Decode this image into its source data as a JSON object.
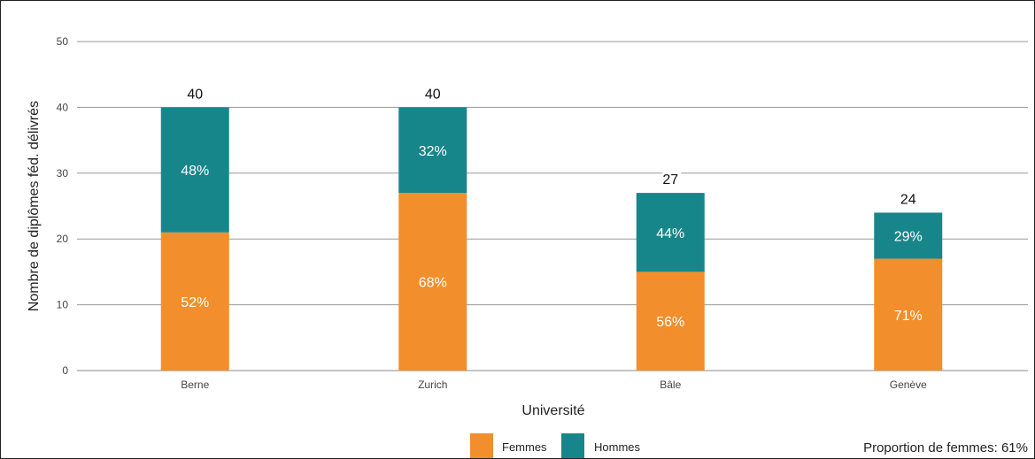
{
  "chart_data": {
    "type": "bar",
    "stacked": true,
    "categories": [
      "Berne",
      "Zurich",
      "Bâle",
      "Genève"
    ],
    "series": [
      {
        "name": "Femmes",
        "color": "#f28e2b",
        "values": [
          21,
          27,
          15,
          17
        ],
        "labels": [
          "52%",
          "68%",
          "56%",
          "71%"
        ]
      },
      {
        "name": "Hommes",
        "color": "#17868b",
        "values": [
          19,
          13,
          12,
          7
        ],
        "labels": [
          "48%",
          "32%",
          "44%",
          "29%"
        ]
      }
    ],
    "totals": [
      40,
      40,
      27,
      24
    ],
    "xlabel": "Université",
    "ylabel": "Nombre de diplômes féd. délivrés",
    "ylim": [
      0,
      50
    ],
    "yticks": [
      0,
      10,
      20,
      30,
      40,
      50
    ],
    "grid": true,
    "legend_position": "bottom",
    "annotation": "Proportion de femmes: 61%"
  }
}
